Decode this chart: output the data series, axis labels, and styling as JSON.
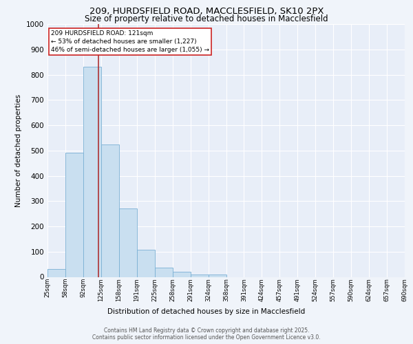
{
  "title_line1": "209, HURDSFIELD ROAD, MACCLESFIELD, SK10 2PX",
  "title_line2": "Size of property relative to detached houses in Macclesfield",
  "xlabel": "Distribution of detached houses by size in Macclesfield",
  "ylabel": "Number of detached properties",
  "bar_values": [
    30,
    490,
    830,
    525,
    270,
    107,
    37,
    20,
    10,
    10,
    0,
    0,
    0,
    0,
    0,
    0,
    0,
    0,
    0,
    0
  ],
  "categories": [
    "25sqm",
    "58sqm",
    "92sqm",
    "125sqm",
    "158sqm",
    "191sqm",
    "225sqm",
    "258sqm",
    "291sqm",
    "324sqm",
    "358sqm",
    "391sqm",
    "424sqm",
    "457sqm",
    "491sqm",
    "524sqm",
    "557sqm",
    "590sqm",
    "624sqm",
    "657sqm",
    "690sqm"
  ],
  "bar_color": "#c9dff0",
  "bar_edge_color": "#7ab0d4",
  "vline_x": 2.87,
  "vline_color": "#aa2222",
  "annotation_text": "209 HURDSFIELD ROAD: 121sqm\n← 53% of detached houses are smaller (1,227)\n46% of semi-detached houses are larger (1,055) →",
  "annotation_box_facecolor": "#ffffff",
  "annotation_box_edge": "#cc2222",
  "ylim": [
    0,
    1000
  ],
  "yticks": [
    0,
    100,
    200,
    300,
    400,
    500,
    600,
    700,
    800,
    900,
    1000
  ],
  "footer_line1": "Contains HM Land Registry data © Crown copyright and database right 2025.",
  "footer_line2": "Contains public sector information licensed under the Open Government Licence v3.0.",
  "bg_color": "#f0f4fa",
  "plot_bg_color": "#e8eef8",
  "grid_color": "#ffffff",
  "title1_fontsize": 9.5,
  "title2_fontsize": 8.5,
  "ylabel_fontsize": 7.5,
  "xlabel_fontsize": 7.5,
  "ytick_fontsize": 7.5,
  "xtick_fontsize": 6.0,
  "ann_fontsize": 6.5,
  "footer_fontsize": 5.5
}
